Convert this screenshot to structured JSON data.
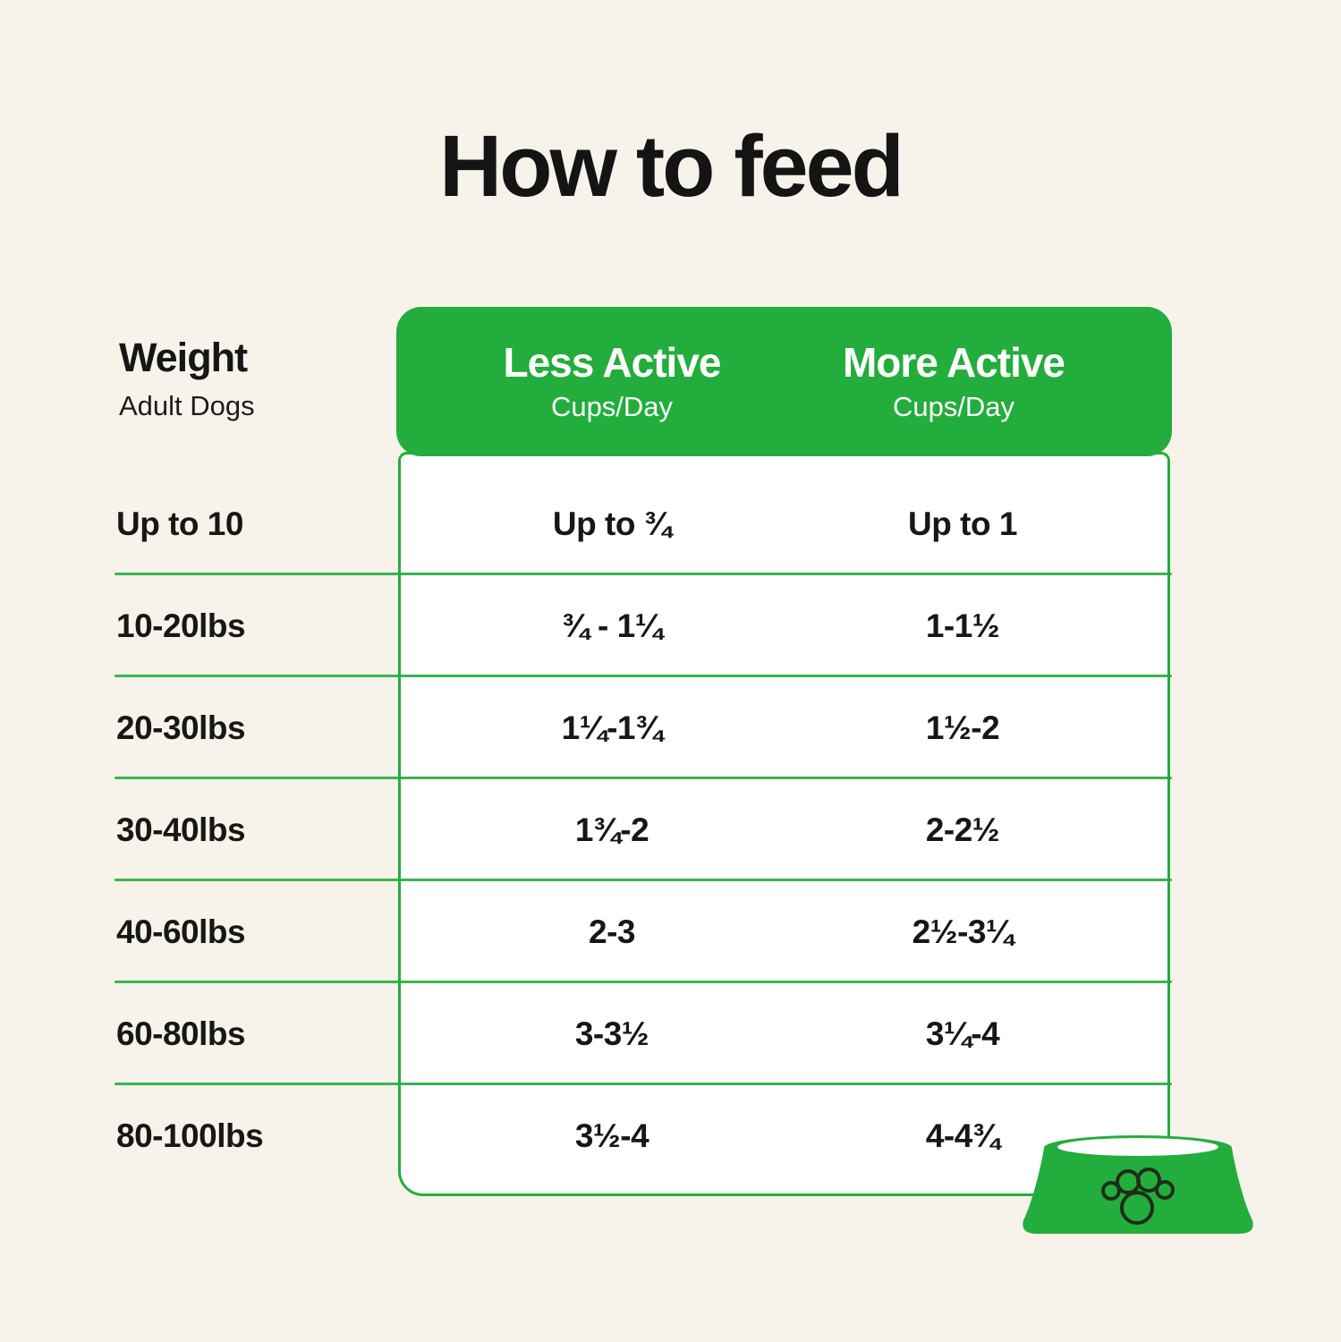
{
  "title": "How to feed",
  "weight_header": {
    "title": "Weight",
    "subtitle": "Adult Dogs"
  },
  "columns": [
    {
      "label": "Less Active",
      "sublabel": "Cups/Day"
    },
    {
      "label": "More Active",
      "sublabel": "Cups/Day"
    }
  ],
  "table": {
    "rows": [
      {
        "weight": "Up to 10",
        "less_active": "Up to ¾",
        "more_active": "Up to 1"
      },
      {
        "weight": "10-20lbs",
        "less_active": "¾ - 1¼",
        "more_active": "1-1½"
      },
      {
        "weight": "20-30lbs",
        "less_active": "1¼-1¾",
        "more_active": "1½-2"
      },
      {
        "weight": "30-40lbs",
        "less_active": "1¾-2",
        "more_active": "2-2½"
      },
      {
        "weight": "40-60lbs",
        "less_active": "2-3",
        "more_active": "2½-3¼"
      },
      {
        "weight": "60-80lbs",
        "less_active": "3-3½",
        "more_active": "3¼-4"
      },
      {
        "weight": "80-100lbs",
        "less_active": "3½-4",
        "more_active": "4-4¾"
      }
    ]
  },
  "icons": {
    "bowl": "dog-bowl-paw-icon"
  },
  "colors": {
    "background": "#F7F3EB",
    "green": "#23AD3C",
    "table_background": "#FFFFFF",
    "text": "#161616",
    "header_text": "#FFFFFF",
    "paw_outline": "#1F2D1A"
  },
  "chart_data": {
    "type": "table",
    "title": "How to feed",
    "columns": [
      "Weight (Adult Dogs)",
      "Less Active Cups/Day",
      "More Active Cups/Day"
    ],
    "rows": [
      [
        "Up to 10",
        "Up to ¾",
        "Up to 1"
      ],
      [
        "10-20lbs",
        "¾ - 1¼",
        "1-1½"
      ],
      [
        "20-30lbs",
        "1¼-1¾",
        "1½-2"
      ],
      [
        "30-40lbs",
        "1¾-2",
        "2-2½"
      ],
      [
        "40-60lbs",
        "2-3",
        "2½-3¼"
      ],
      [
        "60-80lbs",
        "3-3½",
        "3¼-4"
      ],
      [
        "80-100lbs",
        "3½-4",
        "4-4¾"
      ]
    ]
  }
}
